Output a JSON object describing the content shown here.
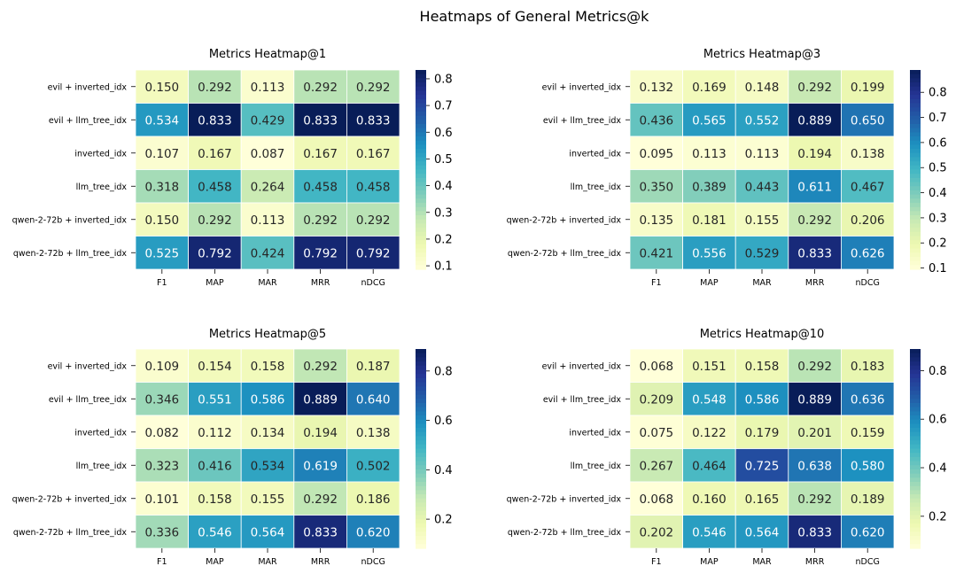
{
  "suptitle": "Heatmaps of General Metrics@k",
  "chart_data": [
    {
      "type": "heatmap",
      "title": "Metrics Heatmap@1",
      "rows": [
        "evil + inverted_idx",
        "evil + llm_tree_idx",
        "inverted_idx",
        "llm_tree_idx",
        "qwen-2-72b + inverted_idx",
        "qwen-2-72b + llm_tree_idx"
      ],
      "columns": [
        "F1",
        "MAP",
        "MAR",
        "MRR",
        "nDCG"
      ],
      "values": [
        [
          "0.150",
          "0.292",
          "0.113",
          "0.292",
          "0.292"
        ],
        [
          "0.534",
          "0.833",
          "0.429",
          "0.833",
          "0.833"
        ],
        [
          "0.107",
          "0.167",
          "0.087",
          "0.167",
          "0.167"
        ],
        [
          "0.318",
          "0.458",
          "0.264",
          "0.458",
          "0.458"
        ],
        [
          "0.150",
          "0.292",
          "0.113",
          "0.292",
          "0.292"
        ],
        [
          "0.525",
          "0.792",
          "0.424",
          "0.792",
          "0.792"
        ]
      ],
      "colormap": "YlGnBu",
      "color_range": [
        0.087,
        0.833
      ],
      "colorbar_ticks": [
        "0.1",
        "0.2",
        "0.3",
        "0.4",
        "0.5",
        "0.6",
        "0.7",
        "0.8"
      ]
    },
    {
      "type": "heatmap",
      "title": "Metrics Heatmap@3",
      "rows": [
        "evil + inverted_idx",
        "evil + llm_tree_idx",
        "inverted_idx",
        "llm_tree_idx",
        "qwen-2-72b + inverted_idx",
        "qwen-2-72b + llm_tree_idx"
      ],
      "columns": [
        "F1",
        "MAP",
        "MAR",
        "MRR",
        "nDCG"
      ],
      "values": [
        [
          "0.132",
          "0.169",
          "0.148",
          "0.292",
          "0.199"
        ],
        [
          "0.436",
          "0.565",
          "0.552",
          "0.889",
          "0.650"
        ],
        [
          "0.095",
          "0.113",
          "0.113",
          "0.194",
          "0.138"
        ],
        [
          "0.350",
          "0.389",
          "0.443",
          "0.611",
          "0.467"
        ],
        [
          "0.135",
          "0.181",
          "0.155",
          "0.292",
          "0.206"
        ],
        [
          "0.421",
          "0.556",
          "0.529",
          "0.833",
          "0.626"
        ]
      ],
      "colormap": "YlGnBu",
      "color_range": [
        0.095,
        0.889
      ],
      "colorbar_ticks": [
        "0.1",
        "0.2",
        "0.3",
        "0.4",
        "0.5",
        "0.6",
        "0.7",
        "0.8"
      ]
    },
    {
      "type": "heatmap",
      "title": "Metrics Heatmap@5",
      "rows": [
        "evil + inverted_idx",
        "evil + llm_tree_idx",
        "inverted_idx",
        "llm_tree_idx",
        "qwen-2-72b + inverted_idx",
        "qwen-2-72b + llm_tree_idx"
      ],
      "columns": [
        "F1",
        "MAP",
        "MAR",
        "MRR",
        "nDCG"
      ],
      "values": [
        [
          "0.109",
          "0.154",
          "0.158",
          "0.292",
          "0.187"
        ],
        [
          "0.346",
          "0.551",
          "0.586",
          "0.889",
          "0.640"
        ],
        [
          "0.082",
          "0.112",
          "0.134",
          "0.194",
          "0.138"
        ],
        [
          "0.323",
          "0.416",
          "0.534",
          "0.619",
          "0.502"
        ],
        [
          "0.101",
          "0.158",
          "0.155",
          "0.292",
          "0.186"
        ],
        [
          "0.336",
          "0.546",
          "0.564",
          "0.833",
          "0.620"
        ]
      ],
      "colormap": "YlGnBu",
      "color_range": [
        0.082,
        0.889
      ],
      "colorbar_ticks": [
        "0.2",
        "0.4",
        "0.6",
        "0.8"
      ]
    },
    {
      "type": "heatmap",
      "title": "Metrics Heatmap@10",
      "rows": [
        "evil + inverted_idx",
        "evil + llm_tree_idx",
        "inverted_idx",
        "llm_tree_idx",
        "qwen-2-72b + inverted_idx",
        "qwen-2-72b + llm_tree_idx"
      ],
      "columns": [
        "F1",
        "MAP",
        "MAR",
        "MRR",
        "nDCG"
      ],
      "values": [
        [
          "0.068",
          "0.151",
          "0.158",
          "0.292",
          "0.183"
        ],
        [
          "0.209",
          "0.548",
          "0.586",
          "0.889",
          "0.636"
        ],
        [
          "0.075",
          "0.122",
          "0.179",
          "0.201",
          "0.159"
        ],
        [
          "0.267",
          "0.464",
          "0.725",
          "0.638",
          "0.580"
        ],
        [
          "0.068",
          "0.160",
          "0.165",
          "0.292",
          "0.189"
        ],
        [
          "0.202",
          "0.546",
          "0.564",
          "0.833",
          "0.620"
        ]
      ],
      "colormap": "YlGnBu",
      "color_range": [
        0.068,
        0.889
      ],
      "colorbar_ticks": [
        "0.2",
        "0.4",
        "0.6",
        "0.8"
      ]
    }
  ]
}
